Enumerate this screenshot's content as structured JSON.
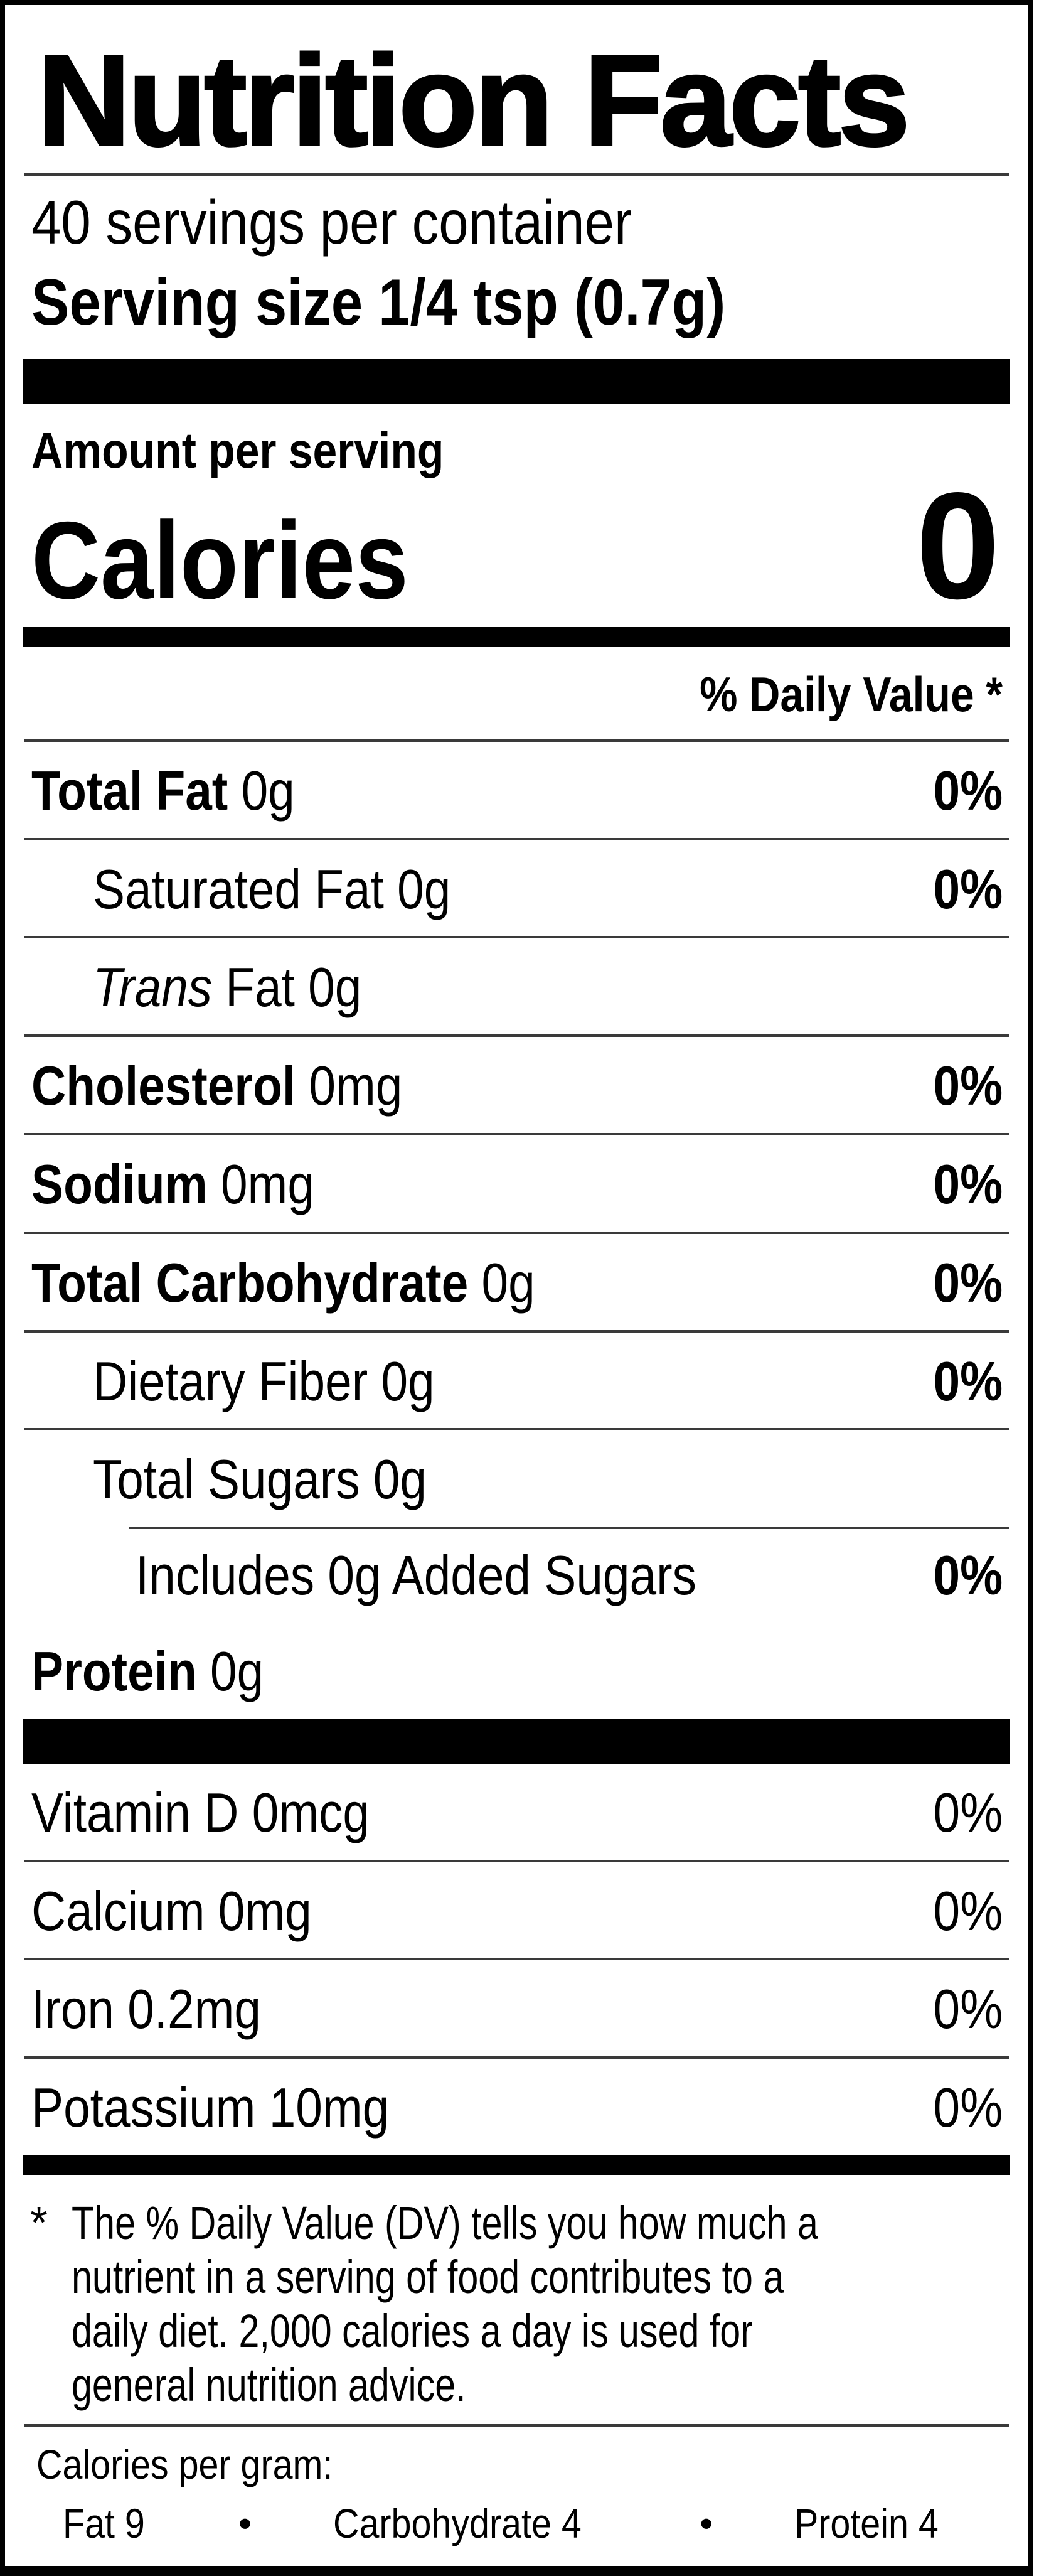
{
  "label": {
    "title": "Nutrition Facts",
    "servings_per_container": "40 servings per container",
    "serving_size": "Serving size 1/4 tsp (0.7g)",
    "amount_per_serving": "Amount per serving",
    "calories_label": "Calories",
    "calories_value": "0",
    "daily_value_header": "% Daily Value *",
    "rows": [
      {
        "parts": [
          {
            "t": "Total Fat",
            "b": true
          },
          {
            "t": " 0g"
          }
        ],
        "dv": "0%",
        "indent": 0,
        "sep": "full"
      },
      {
        "parts": [
          {
            "t": "Saturated Fat 0g"
          }
        ],
        "dv": "0%",
        "indent": 1,
        "sep": "full"
      },
      {
        "parts": [
          {
            "t": "Trans",
            "i": true
          },
          {
            "t": " Fat 0g"
          }
        ],
        "dv": "",
        "indent": 1,
        "sep": "full"
      },
      {
        "parts": [
          {
            "t": "Cholesterol",
            "b": true
          },
          {
            "t": " 0mg"
          }
        ],
        "dv": "0%",
        "indent": 0,
        "sep": "full"
      },
      {
        "parts": [
          {
            "t": "Sodium",
            "b": true
          },
          {
            "t": " 0mg"
          }
        ],
        "dv": "0%",
        "indent": 0,
        "sep": "full"
      },
      {
        "parts": [
          {
            "t": "Total Carbohydrate",
            "b": true
          },
          {
            "t": " 0g"
          }
        ],
        "dv": "0%",
        "indent": 0,
        "sep": "full"
      },
      {
        "parts": [
          {
            "t": "Dietary Fiber 0g"
          }
        ],
        "dv": "0%",
        "indent": 1,
        "sep": "full"
      },
      {
        "parts": [
          {
            "t": "Total Sugars 0g"
          }
        ],
        "dv": "",
        "indent": 1,
        "sep": "none"
      },
      {
        "parts": [
          {
            "t": "Includes 0g Added Sugars"
          }
        ],
        "dv": "0%",
        "indent": 2,
        "sep": "partial"
      },
      {
        "parts": [
          {
            "t": "Protein",
            "b": true
          },
          {
            "t": " 0g"
          }
        ],
        "dv": "",
        "indent": 0,
        "sep": "none"
      }
    ],
    "vitamins": [
      {
        "parts": [
          {
            "t": "Vitamin D 0mcg"
          }
        ],
        "dv": "0%",
        "sep": "full"
      },
      {
        "parts": [
          {
            "t": "Calcium 0mg"
          }
        ],
        "dv": "0%",
        "sep": "full"
      },
      {
        "parts": [
          {
            "t": "Iron 0.2mg"
          }
        ],
        "dv": "0%",
        "sep": "full"
      },
      {
        "parts": [
          {
            "t": "Potassium 10mg"
          }
        ],
        "dv": "0%",
        "sep": "none"
      }
    ],
    "footnote_marker": "*",
    "footnote_lines": [
      "The % Daily Value (DV) tells you how much a",
      "nutrient in a serving of food contributes to a",
      "daily diet. 2,000 calories a day is used for",
      "general nutrition advice."
    ],
    "calories_per_gram": {
      "heading": "Calories per gram:",
      "fat": "Fat 9",
      "carbohydrate": "Carbohydrate 4",
      "protein": "Protein 4",
      "bullet": "•"
    },
    "colors": {
      "text": "#000000",
      "background": "#ffffff",
      "hairline": "#3a3a3a"
    }
  }
}
